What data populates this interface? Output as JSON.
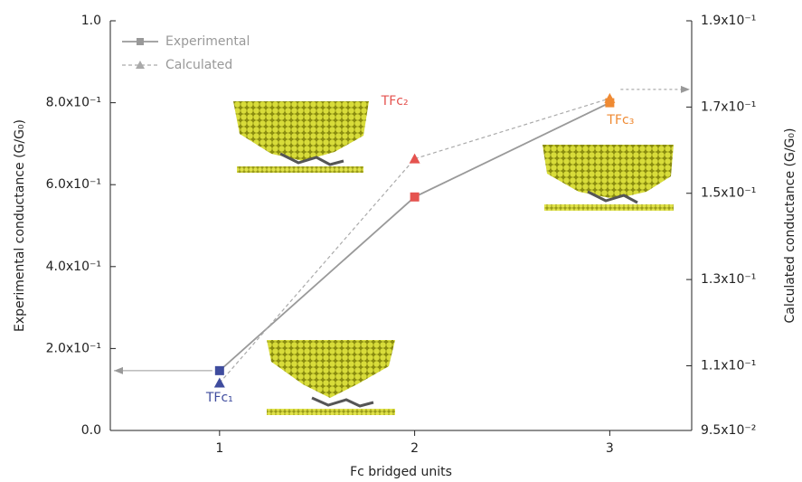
{
  "chart_data": {
    "type": "line",
    "x_label": "Fc bridged units",
    "y_label": "Experimental conductance (G/G₀)",
    "y2_label": "Calculated conductance (G/G₀)",
    "x": [
      1,
      2,
      3
    ],
    "xlim": [
      0.44,
      3.42
    ],
    "xticks": [
      1,
      2,
      3
    ],
    "ylim": [
      0,
      1
    ],
    "yticks": [
      {
        "value": 0,
        "label": "0.0"
      },
      {
        "value": 0.2,
        "label": "2.0x10⁻¹"
      },
      {
        "value": 0.4,
        "label": "4.0x10⁻¹"
      },
      {
        "value": 0.6,
        "label": "6.0x10⁻¹"
      },
      {
        "value": 0.8,
        "label": "8.0x10⁻¹"
      },
      {
        "value": 1,
        "label": "1.0"
      }
    ],
    "y2lim": [
      0.095,
      0.19
    ],
    "y2ticks": [
      {
        "value": 0.095,
        "label": "9.5x10⁻²"
      },
      {
        "value": 0.11,
        "label": "1.1x10⁻¹"
      },
      {
        "value": 0.13,
        "label": "1.3x10⁻¹"
      },
      {
        "value": 0.15,
        "label": "1.5x10⁻¹"
      },
      {
        "value": 0.17,
        "label": "1.7x10⁻¹"
      },
      {
        "value": 0.19,
        "label": "1.9x10⁻¹"
      }
    ],
    "series": [
      {
        "name": "Experimental",
        "color": "#999999",
        "marker": "square",
        "dash": false,
        "marker_colors": [
          "#3f4c9e",
          "#e5534f",
          "#ef8a33"
        ],
        "values": [
          0.146,
          0.57,
          0.8
        ]
      },
      {
        "name": "Calculated",
        "color": "#aaaaaa",
        "marker": "triangle",
        "dash": true,
        "axis": "y2",
        "marker_colors": [
          "#3f4c9e",
          "#e5534f",
          "#ef8a33"
        ],
        "values": [
          0.106,
          0.158,
          0.172
        ]
      }
    ],
    "annotations": [
      {
        "text": "TFc₁",
        "color": "#3f4c9e"
      },
      {
        "text": "TFc₂",
        "color": "#e5534f"
      },
      {
        "text": "TFc₃",
        "color": "#ef8a33"
      }
    ],
    "legend": "upper left"
  }
}
